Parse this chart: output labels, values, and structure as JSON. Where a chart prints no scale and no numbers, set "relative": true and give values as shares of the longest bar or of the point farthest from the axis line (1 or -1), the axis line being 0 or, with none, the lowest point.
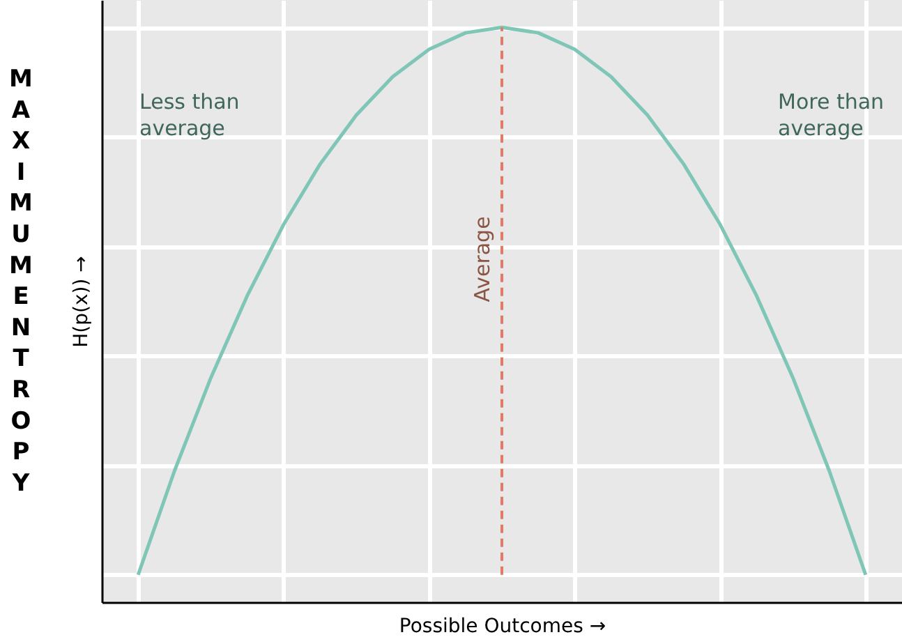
{
  "chart_data": {
    "type": "line",
    "title": "MAXIMUM ENTROPY",
    "xlabel": "Possible Outcomes →",
    "ylabel": "H(p(x)) →",
    "relative": true,
    "categories": [
      null,
      null,
      null,
      null,
      null,
      null,
      null,
      null,
      null,
      null,
      null,
      null,
      null,
      null,
      null,
      null,
      null,
      null,
      null,
      null,
      null
    ],
    "series": [
      {
        "color": "#7fc6b6",
        "values": [
          0,
          0.19,
          0.36,
          0.51,
          0.64,
          0.75,
          0.84,
          0.91,
          0.96,
          0.99,
          1,
          0.99,
          0.96,
          0.91,
          0.84,
          0.75,
          0.64,
          0.51,
          0.36,
          0.19,
          0
        ]
      }
    ],
    "annotations": [
      "Less than\naverage",
      "More than\naverage",
      "Average"
    ],
    "grid": true,
    "tick_labels": false
  }
}
